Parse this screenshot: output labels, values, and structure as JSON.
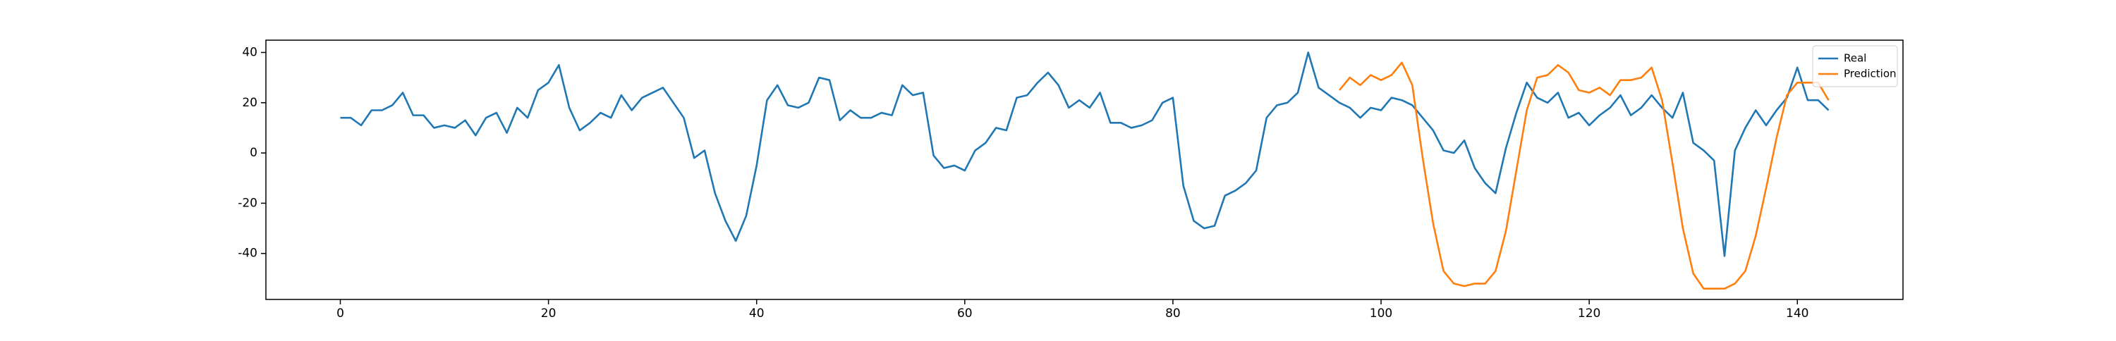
{
  "chart_data": {
    "type": "line",
    "x": [
      0,
      1,
      2,
      3,
      4,
      5,
      6,
      7,
      8,
      9,
      10,
      11,
      12,
      13,
      14,
      15,
      16,
      17,
      18,
      19,
      20,
      21,
      22,
      23,
      24,
      25,
      26,
      27,
      28,
      29,
      30,
      31,
      32,
      33,
      34,
      35,
      36,
      37,
      38,
      39,
      40,
      41,
      42,
      43,
      44,
      45,
      46,
      47,
      48,
      49,
      50,
      51,
      52,
      53,
      54,
      55,
      56,
      57,
      58,
      59,
      60,
      61,
      62,
      63,
      64,
      65,
      66,
      67,
      68,
      69,
      70,
      71,
      72,
      73,
      74,
      75,
      76,
      77,
      78,
      79,
      80,
      81,
      82,
      83,
      84,
      85,
      86,
      87,
      88,
      89,
      90,
      91,
      92,
      93,
      94,
      95,
      96,
      97,
      98,
      99,
      100,
      101,
      102,
      103,
      104,
      105,
      106,
      107,
      108,
      109,
      110,
      111,
      112,
      113,
      114,
      115,
      116,
      117,
      118,
      119,
      120,
      121,
      122,
      123,
      124,
      125,
      126,
      127,
      128,
      129,
      130,
      131,
      132,
      133,
      134,
      135,
      136,
      137,
      138,
      139,
      140,
      141,
      142,
      143
    ],
    "series": [
      {
        "name": "Real",
        "color": "#1f77b4",
        "values": [
          14,
          14,
          11,
          17,
          17,
          19,
          24,
          15,
          15,
          10,
          11,
          10,
          13,
          7,
          14,
          16,
          8,
          18,
          14,
          25,
          28,
          35,
          18,
          9,
          12,
          16,
          14,
          23,
          17,
          22,
          24,
          26,
          20,
          14,
          -2,
          1,
          -16,
          -27,
          -35,
          -25,
          -5,
          21,
          27,
          19,
          18,
          20,
          30,
          29,
          13,
          17,
          14,
          14,
          16,
          15,
          27,
          23,
          24,
          -1,
          -6,
          -5,
          -7,
          1,
          4,
          10,
          9,
          22,
          23,
          28,
          32,
          27,
          18,
          21,
          18,
          24,
          12,
          12,
          10,
          11,
          13,
          20,
          22,
          -13,
          -27,
          -30,
          -29,
          -17,
          -15,
          -12,
          -7,
          14,
          19,
          20,
          24,
          40,
          26,
          23,
          20,
          18,
          14,
          18,
          17,
          22,
          21,
          19,
          14,
          9,
          1,
          0,
          5,
          -6,
          -12,
          -16,
          2,
          16,
          28,
          22,
          20,
          24,
          14,
          16,
          11,
          15,
          18,
          23,
          15,
          18,
          23,
          18,
          14,
          24,
          4,
          1,
          -3,
          -41,
          1,
          10,
          17,
          11,
          17,
          22,
          34,
          21,
          21,
          17
        ]
      },
      {
        "name": "Prediction",
        "color": "#ff7f0e",
        "values": [
          null,
          null,
          null,
          null,
          null,
          null,
          null,
          null,
          null,
          null,
          null,
          null,
          null,
          null,
          null,
          null,
          null,
          null,
          null,
          null,
          null,
          null,
          null,
          null,
          null,
          null,
          null,
          null,
          null,
          null,
          null,
          null,
          null,
          null,
          null,
          null,
          null,
          null,
          null,
          null,
          null,
          null,
          null,
          null,
          null,
          null,
          null,
          null,
          null,
          null,
          null,
          null,
          null,
          null,
          null,
          null,
          null,
          null,
          null,
          null,
          null,
          null,
          null,
          null,
          null,
          null,
          null,
          null,
          null,
          null,
          null,
          null,
          null,
          null,
          null,
          null,
          null,
          null,
          null,
          null,
          null,
          null,
          null,
          null,
          null,
          null,
          null,
          null,
          null,
          null,
          null,
          null,
          null,
          null,
          null,
          null,
          25,
          30,
          27,
          31,
          29,
          31,
          36,
          27,
          -2,
          -28,
          -47,
          -52,
          -53,
          -52,
          -52,
          -47,
          -31,
          -7,
          17,
          30,
          31,
          35,
          32,
          25,
          24,
          26,
          23,
          29,
          29,
          30,
          34,
          21,
          -4,
          -30,
          -48,
          -54,
          -54,
          -54,
          -52,
          -47,
          -33,
          -14,
          6,
          23,
          28,
          28,
          28,
          21
        ]
      }
    ],
    "xlim": [
      -7.15,
      150.15
    ],
    "ylim": [
      -58.3,
      44.9
    ],
    "xticks": [
      0,
      20,
      40,
      60,
      80,
      100,
      120,
      140
    ],
    "yticks": [
      -40,
      -20,
      0,
      20,
      40
    ],
    "grid": false,
    "legend": "upper right"
  }
}
